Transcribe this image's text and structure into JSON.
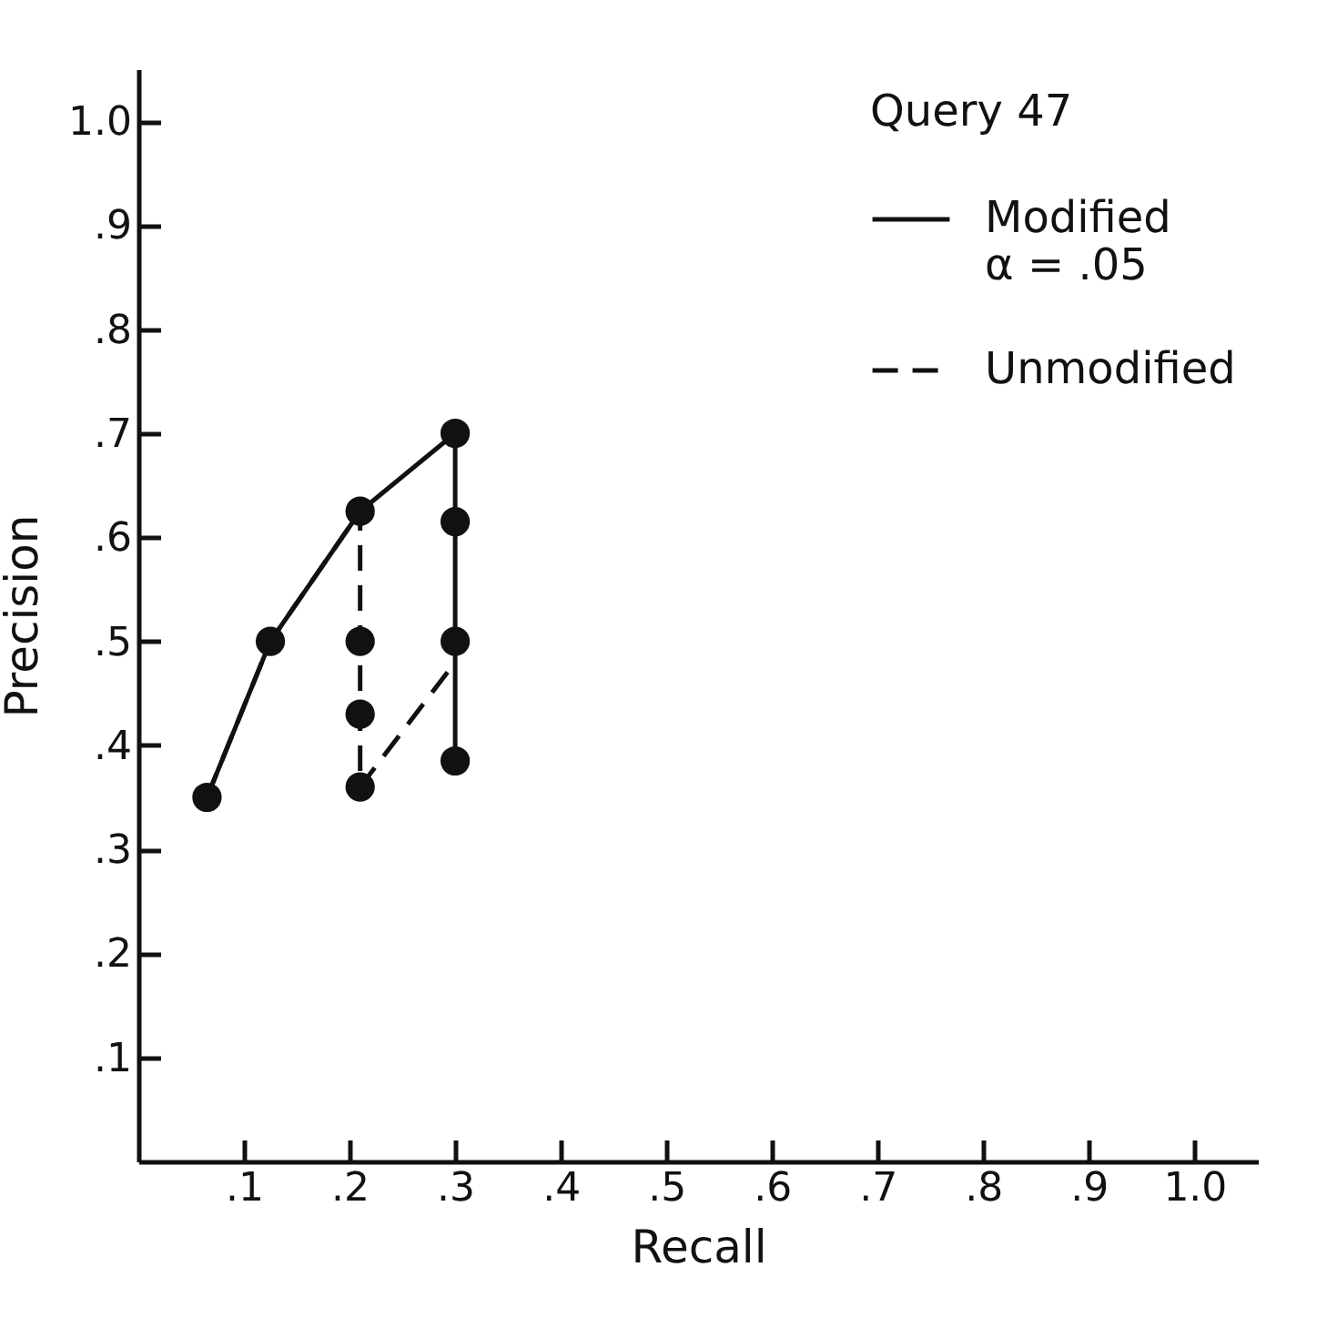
{
  "chart_data": {
    "type": "line",
    "xlabel": "Recall",
    "ylabel": "Precision",
    "legend_title": "Query 47",
    "legend": "top right",
    "grid": false,
    "xlim": [
      0,
      1.06
    ],
    "ylim": [
      0,
      1.05
    ],
    "xticks": [
      {
        "value": 0.1,
        "label": ".1"
      },
      {
        "value": 0.2,
        "label": ".2"
      },
      {
        "value": 0.3,
        "label": ".3"
      },
      {
        "value": 0.4,
        "label": ".4"
      },
      {
        "value": 0.5,
        "label": ".5"
      },
      {
        "value": 0.6,
        "label": ".6"
      },
      {
        "value": 0.7,
        "label": ".7"
      },
      {
        "value": 0.8,
        "label": ".8"
      },
      {
        "value": 0.9,
        "label": ".9"
      },
      {
        "value": 1.0,
        "label": "1.0"
      }
    ],
    "yticks": [
      {
        "value": 0.1,
        "label": ".1"
      },
      {
        "value": 0.2,
        "label": ".2"
      },
      {
        "value": 0.3,
        "label": ".3"
      },
      {
        "value": 0.4,
        "label": ".4"
      },
      {
        "value": 0.5,
        "label": ".5"
      },
      {
        "value": 0.6,
        "label": ".6"
      },
      {
        "value": 0.7,
        "label": ".7"
      },
      {
        "value": 0.8,
        "label": ".8"
      },
      {
        "value": 0.9,
        "label": ".9"
      },
      {
        "value": 1.0,
        "label": "1.0"
      }
    ],
    "series": [
      {
        "name": "Modified\nα = .05",
        "line_style": "solid",
        "marker": "none",
        "color": "#111111",
        "x": [
          0.065,
          0.125,
          0.21,
          0.3,
          0.3,
          0.3,
          0.3
        ],
        "values": [
          0.35,
          0.5,
          0.625,
          0.7,
          0.615,
          0.5,
          0.385
        ]
      },
      {
        "name": "Unmodified",
        "line_style": "dashed",
        "marker": "none",
        "color": "#111111",
        "x": [
          0.065,
          0.125,
          0.21,
          0.21,
          0.21,
          0.21,
          0.3
        ],
        "values": [
          0.35,
          0.5,
          0.625,
          0.5,
          0.43,
          0.36,
          0.48
        ]
      },
      {
        "type": "scatter",
        "marker": "circle",
        "color": "#111111",
        "x": [
          0.065,
          0.125,
          0.21,
          0.3,
          0.3,
          0.3,
          0.3,
          0.21,
          0.21,
          0.21
        ],
        "values": [
          0.35,
          0.5,
          0.625,
          0.7,
          0.615,
          0.5,
          0.385,
          0.5,
          0.43,
          0.36
        ]
      }
    ]
  }
}
